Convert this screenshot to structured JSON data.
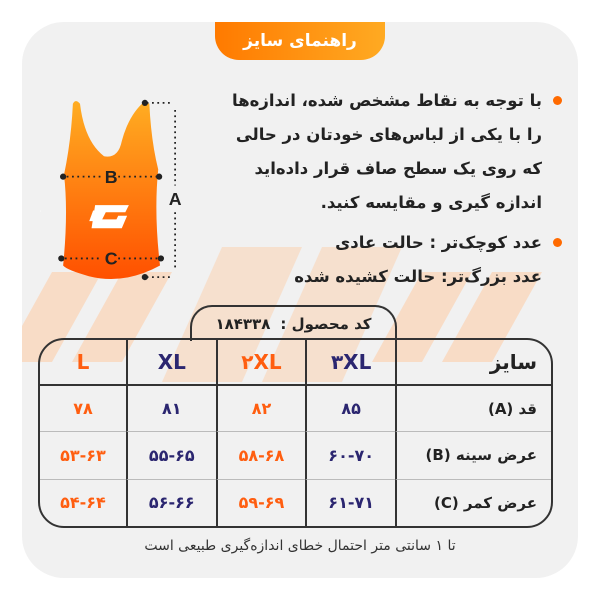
{
  "title": "راهنمای سایز",
  "bullets": [
    {
      "lines": [
        "با توجه به نقاط مشخص شده، اندازه‌ها",
        "را با یکی از لباس‌های خودتان در حالی",
        "که روی یک سطح صاف قرار داده‌اید",
        "اندازه گیری و مقایسه کنید."
      ]
    },
    {
      "lines": [
        "عدد کوچک‌تر : حالت عادی",
        "عدد بزرگ‌تر: حالت کشیده شده"
      ]
    }
  ],
  "diagram": {
    "labels": {
      "a": "A",
      "b": "B",
      "c": "C"
    }
  },
  "product_code": {
    "label": "کد محصول :",
    "value": "۱۸۴۳۳۸"
  },
  "table": {
    "header": [
      "سایز",
      "۳XL",
      "۲XL",
      "XL",
      "L"
    ],
    "rows": [
      [
        "قد (A)",
        "۸۵",
        "۸۲",
        "۸۱",
        "۷۸"
      ],
      [
        "عرض سینه (B)",
        "۶۰-۷۰",
        "۵۸-۶۸",
        "۵۵-۶۵",
        "۵۳-۶۳"
      ],
      [
        "عرض کمر (C)",
        "۶۱-۷۱",
        "۵۹-۶۹",
        "۵۶-۶۶",
        "۵۴-۶۴"
      ]
    ]
  },
  "note": "تا ۱ سانتی متر احتمال خطای اندازه‌گیری طبیعی است",
  "colors": {
    "accent": "#ff6a00",
    "navy": "#2b2670",
    "card": "#f1f1f1",
    "stripe": "#f8dcc6"
  }
}
